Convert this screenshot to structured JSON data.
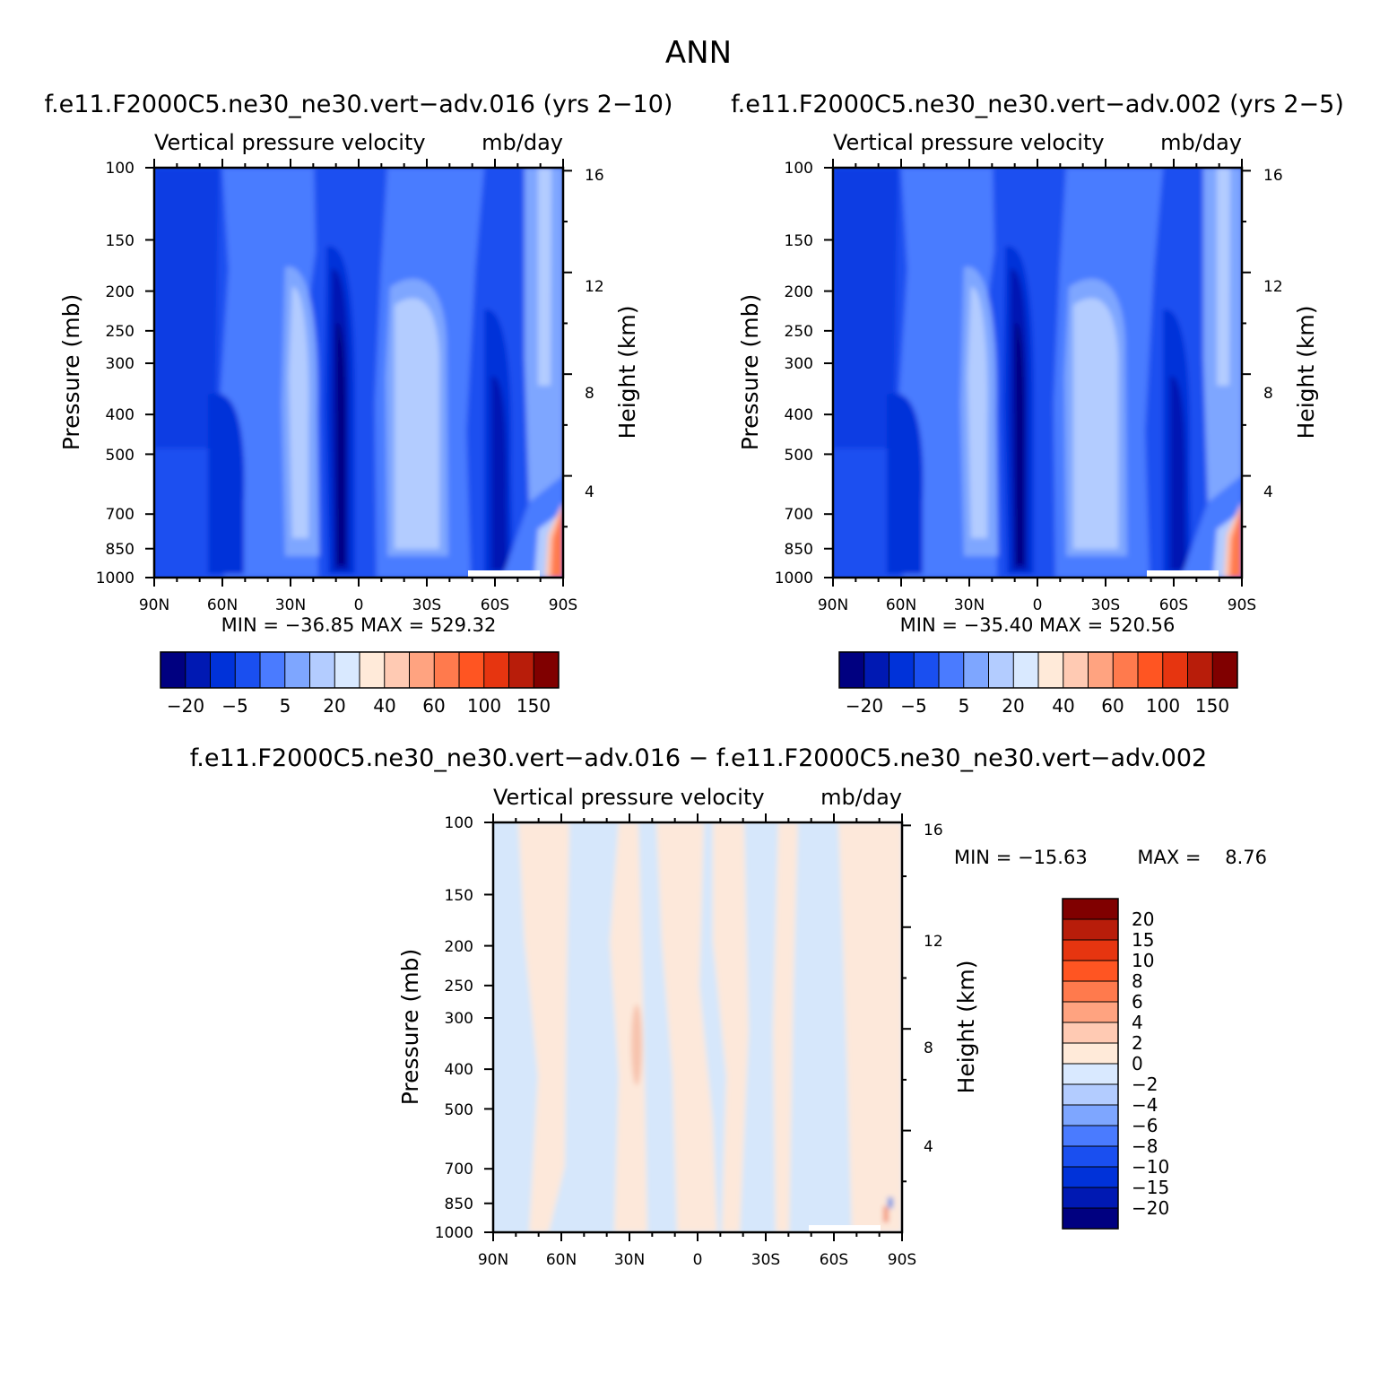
{
  "page_title": "ANN",
  "chart_data": [
    {
      "type": "heatmap",
      "title": "f.e11.F2000C5.ne30_ne30.vert−adv.016 (yrs 2−10)",
      "subtitle_left": "Vertical pressure velocity",
      "subtitle_right": "mb/day",
      "xlabel": "",
      "ylabel": "Pressure (mb)",
      "y2label": "Height (km)",
      "x_ticks": [
        "90N",
        "60N",
        "30N",
        "0",
        "30S",
        "60S",
        "90S"
      ],
      "y_ticks": [
        "100",
        "150",
        "200",
        "250",
        "300",
        "400",
        "500",
        "700",
        "850",
        "1000"
      ],
      "y2_ticks": [
        "16",
        "12",
        "8",
        "4"
      ],
      "stats": "MIN = −36.85   MAX = 529.32",
      "min": -36.85,
      "max": 529.32,
      "colorbar_labels": [
        "−20",
        "−5",
        "5",
        "20",
        "40",
        "60",
        "100",
        "150"
      ]
    },
    {
      "type": "heatmap",
      "title": "f.e11.F2000C5.ne30_ne30.vert−adv.002 (yrs 2−5)",
      "subtitle_left": "Vertical pressure velocity",
      "subtitle_right": "mb/day",
      "xlabel": "",
      "ylabel": "Pressure (mb)",
      "y2label": "Height (km)",
      "x_ticks": [
        "90N",
        "60N",
        "30N",
        "0",
        "30S",
        "60S",
        "90S"
      ],
      "y_ticks": [
        "100",
        "150",
        "200",
        "250",
        "300",
        "400",
        "500",
        "700",
        "850",
        "1000"
      ],
      "y2_ticks": [
        "16",
        "12",
        "8",
        "4"
      ],
      "stats": "MIN = −35.40   MAX = 520.56",
      "min": -35.4,
      "max": 520.56,
      "colorbar_labels": [
        "−20",
        "−5",
        "5",
        "20",
        "40",
        "60",
        "100",
        "150"
      ]
    },
    {
      "type": "heatmap",
      "title": "f.e11.F2000C5.ne30_ne30.vert−adv.016 − f.e11.F2000C5.ne30_ne30.vert−adv.002",
      "subtitle_left": "Vertical pressure velocity",
      "subtitle_right": "mb/day",
      "xlabel": "",
      "ylabel": "Pressure (mb)",
      "y2label": "Height (km)",
      "x_ticks": [
        "90N",
        "60N",
        "30N",
        "0",
        "30S",
        "60S",
        "90S"
      ],
      "y_ticks": [
        "100",
        "150",
        "200",
        "250",
        "300",
        "400",
        "500",
        "700",
        "850",
        "1000"
      ],
      "y2_ticks": [
        "16",
        "12",
        "8",
        "4"
      ],
      "stats_min": "MIN = −15.63",
      "stats_max": "MAX =    8.76",
      "min": -15.63,
      "max": 8.76,
      "colorbar_labels": [
        "20",
        "15",
        "10",
        "8",
        "6",
        "4",
        "2",
        "0",
        "−2",
        "−4",
        "−6",
        "−8",
        "−10",
        "−15",
        "−20"
      ]
    }
  ],
  "colors": {
    "colorbar_16": [
      "#000080",
      "#0019b3",
      "#0032d9",
      "#1a4ff0",
      "#4a7bff",
      "#7ea6ff",
      "#b3ccff",
      "#d9e9ff",
      "#ffead9",
      "#ffcab3",
      "#ffa380",
      "#ff7a4d",
      "#ff5522",
      "#e63510",
      "#b81d0a",
      "#800000"
    ],
    "diff_near_neg": "#d6e7fb",
    "diff_near_pos": "#fde8da"
  }
}
